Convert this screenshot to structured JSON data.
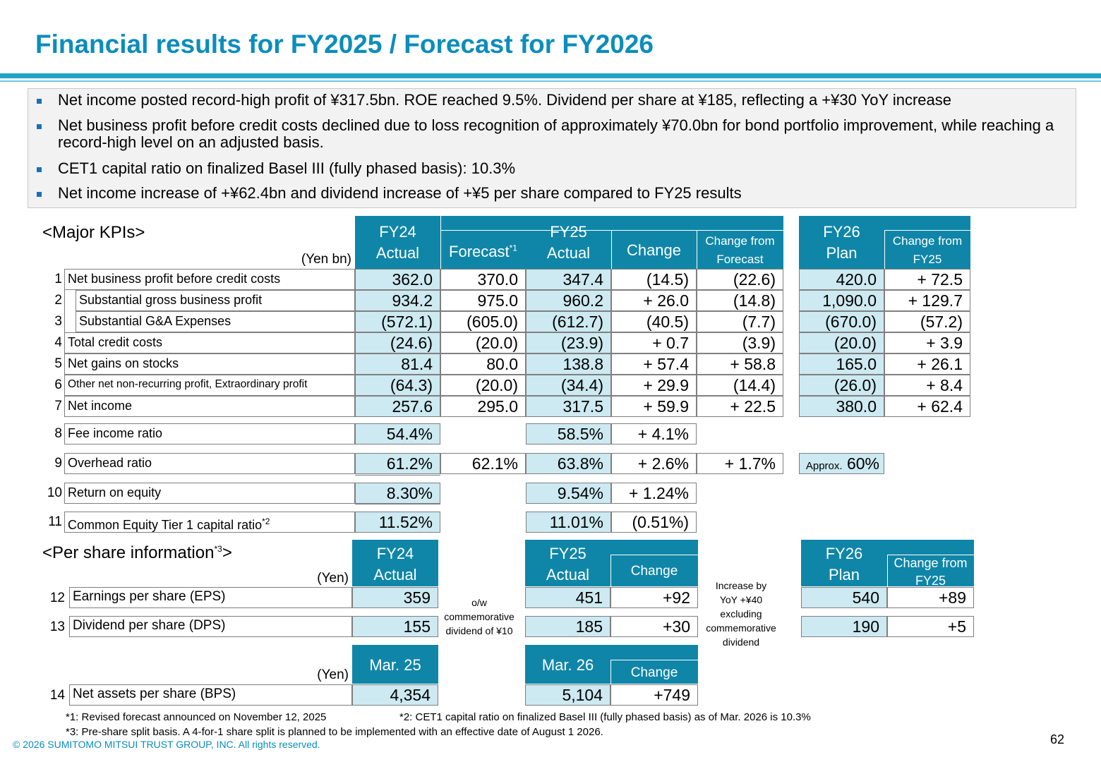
{
  "title": "Financial results for FY2025 / Forecast for FY2026",
  "bullets": [
    "Net income posted record-high profit of ¥317.5bn. ROE reached 9.5%. Dividend per share at ¥185, reflecting a +¥30 YoY increase",
    "Net business profit before credit costs declined due to loss recognition of approximately ¥70.0bn for bond portfolio improvement, while reaching a record-high level on an adjusted basis.",
    "CET1 capital ratio on finalized Basel III (fully phased basis): 10.3%",
    "Net income increase of +¥62.4bn and dividend increase of +¥5 per share compared to FY25 results"
  ],
  "kpi": {
    "section_title": "<Major KPIs>",
    "unit": "(Yen bn)",
    "headers": {
      "fy24": "FY24",
      "fy24_sub": "Actual",
      "fy25": "FY25",
      "forecast": "Forecast",
      "forecast_sup": "*1",
      "actual": "Actual",
      "change": "Change",
      "change_fc_1": "Change from",
      "change_fc_2": "Forecast",
      "fy26": "FY26",
      "fy26_sub": "Plan",
      "change_fy25_1": "Change from",
      "change_fy25_2": "FY25"
    },
    "rows": [
      {
        "no": "1",
        "label": "Net business profit before credit costs",
        "fy24": "362.0",
        "fc": "370.0",
        "fy25": "347.4",
        "chg": "(14.5)",
        "chgfc": "(22.6)",
        "fy26": "420.0",
        "chg26": "+ 72.5"
      },
      {
        "no": "2",
        "label": "Substantial gross business profit",
        "fy24": "934.2",
        "fc": "975.0",
        "fy25": "960.2",
        "chg": "+ 26.0",
        "chgfc": "(14.8)",
        "fy26": "1,090.0",
        "chg26": "+ 129.7"
      },
      {
        "no": "3",
        "label": "Substantial G&A Expenses",
        "fy24": "(572.1)",
        "fc": "(605.0)",
        "fy25": "(612.7)",
        "chg": "(40.5)",
        "chgfc": "(7.7)",
        "fy26": "(670.0)",
        "chg26": "(57.2)"
      },
      {
        "no": "4",
        "label": "Total credit costs",
        "fy24": "(24.6)",
        "fc": "(20.0)",
        "fy25": "(23.9)",
        "chg": "+ 0.7",
        "chgfc": "(3.9)",
        "fy26": "(20.0)",
        "chg26": "+ 3.9"
      },
      {
        "no": "5",
        "label": "Net gains on stocks",
        "fy24": "81.4",
        "fc": "80.0",
        "fy25": "138.8",
        "chg": "+ 57.4",
        "chgfc": "+ 58.8",
        "fy26": "165.0",
        "chg26": "+ 26.1"
      },
      {
        "no": "6",
        "label": "Other net non-recurring profit, Extraordinary profit",
        "fy24": "(64.3)",
        "fc": "(20.0)",
        "fy25": "(34.4)",
        "chg": "+ 29.9",
        "chgfc": "(14.4)",
        "fy26": "(26.0)",
        "chg26": "+ 8.4"
      },
      {
        "no": "7",
        "label": "Net income",
        "fy24": "257.6",
        "fc": "295.0",
        "fy25": "317.5",
        "chg": "+ 59.9",
        "chgfc": "+ 22.5",
        "fy26": "380.0",
        "chg26": "+ 62.4"
      }
    ],
    "ratios": [
      {
        "no": "8",
        "label": "Fee income ratio",
        "fy24": "54.4%",
        "fy25": "58.5%",
        "chg": "+ 4.1%"
      },
      {
        "no": "9",
        "label": "Overhead ratio",
        "fy24": "61.2%",
        "fc": "62.1%",
        "fy25": "63.8%",
        "chg": "+ 2.6%",
        "chgfc": "+ 1.7%",
        "fy26_prefix": "Approx.",
        "fy26": "60%"
      },
      {
        "no": "10",
        "label": "Return on equity",
        "fy24": "8.30%",
        "fy25": "9.54%",
        "chg": "+ 1.24%"
      },
      {
        "no": "11",
        "label": "Common Equity Tier 1 capital ratio",
        "label_sup": "*2",
        "fy24": "11.52%",
        "fy25": "11.01%",
        "chg": "(0.51%)"
      }
    ]
  },
  "per_share": {
    "section_title": "<Per share information",
    "section_sup": "*3",
    "section_end": ">",
    "unit": "(Yen)",
    "headers": {
      "fy24": "FY24",
      "fy24_sub": "Actual",
      "fy25": "FY25",
      "fy25_sub": "Actual",
      "change": "Change",
      "fy26": "FY26",
      "fy26_sub": "Plan",
      "chg26_1": "Change from",
      "chg26_2": "FY25"
    },
    "eps": {
      "no": "12",
      "label": "Earnings per share (EPS)",
      "fy24": "359",
      "fy25": "451",
      "chg": "+92",
      "fy26": "540",
      "chg26": "+89"
    },
    "dps": {
      "no": "13",
      "label": "Dividend per share (DPS)",
      "fy24": "155",
      "fy25": "185",
      "chg": "+30",
      "fy26": "190",
      "chg26": "+5"
    },
    "note_ow": [
      "o/w",
      "commemorative",
      "dividend of ¥10"
    ],
    "note_increase": [
      "Increase by",
      "YoY +¥40",
      "excluding",
      "commemorative",
      "dividend"
    ],
    "bps_unit": "(Yen)",
    "bps_headers": {
      "mar25": "Mar. 25",
      "mar26": "Mar. 26",
      "change": "Change"
    },
    "bps": {
      "no": "14",
      "label": "Net assets per share (BPS)",
      "mar25": "4,354",
      "mar26": "5,104",
      "chg": "+749"
    }
  },
  "footnotes": {
    "f1": "*1: Revised forecast announced on November 12, 2025",
    "f2": "*2: CET1 capital ratio on finalized Basel III (fully phased basis) as of Mar. 2026 is 10.3%",
    "f3": "*3: Pre-share split basis. A 4-for-1 share split is planned to be implemented with an effective date of August 1 2026."
  },
  "copyright": "© 2026 SUMITOMO MITSUI TRUST GROUP, INC. All rights reserved.",
  "page_number": "62",
  "colors": {
    "title": "#0b8dbd",
    "header": "#0f86a8",
    "cell_blue": "#cde9f1",
    "bullet": "#1a6fb8"
  }
}
